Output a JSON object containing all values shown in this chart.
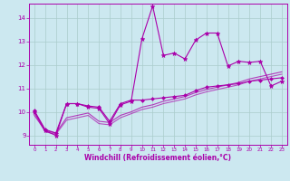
{
  "xlabel": "Windchill (Refroidissement éolien,°C)",
  "bg_color": "#cce8f0",
  "line_color": "#aa00aa",
  "grid_color": "#aacccc",
  "xlim": [
    -0.5,
    23.5
  ],
  "ylim": [
    8.6,
    14.6
  ],
  "yticks": [
    9,
    10,
    11,
    12,
    13,
    14
  ],
  "xticks": [
    0,
    1,
    2,
    3,
    4,
    5,
    6,
    7,
    8,
    9,
    10,
    11,
    12,
    13,
    14,
    15,
    16,
    17,
    18,
    19,
    20,
    21,
    22,
    23
  ],
  "series1_x": [
    0,
    1,
    2,
    3,
    4,
    5,
    6,
    7,
    8,
    9,
    10,
    11,
    12,
    13,
    14,
    15,
    16,
    17,
    18,
    19,
    20,
    21,
    22,
    23
  ],
  "series1_y": [
    10.0,
    9.2,
    9.0,
    10.35,
    10.35,
    10.2,
    10.15,
    9.5,
    10.3,
    10.45,
    13.1,
    14.5,
    12.4,
    12.5,
    12.25,
    13.05,
    13.35,
    13.35,
    11.95,
    12.15,
    12.1,
    12.15,
    11.1,
    11.3
  ],
  "series2_x": [
    0,
    1,
    2,
    3,
    4,
    5,
    6,
    7,
    8,
    9,
    10,
    11,
    12,
    13,
    14,
    15,
    16,
    17,
    18,
    19,
    20,
    21,
    22,
    23
  ],
  "series2_y": [
    10.05,
    9.25,
    9.1,
    10.35,
    10.35,
    10.25,
    10.2,
    9.6,
    10.35,
    10.5,
    10.5,
    10.55,
    10.6,
    10.65,
    10.7,
    10.9,
    11.05,
    11.1,
    11.15,
    11.2,
    11.3,
    11.35,
    11.4,
    11.45
  ],
  "series3_x": [
    0,
    1,
    2,
    3,
    4,
    5,
    6,
    7,
    8,
    9,
    10,
    11,
    12,
    13,
    14,
    15,
    16,
    17,
    18,
    19,
    20,
    21,
    22,
    23
  ],
  "series3_y": [
    9.85,
    9.2,
    9.1,
    9.75,
    9.85,
    9.95,
    9.6,
    9.55,
    9.85,
    10.0,
    10.2,
    10.3,
    10.45,
    10.55,
    10.65,
    10.82,
    10.95,
    11.05,
    11.15,
    11.25,
    11.4,
    11.5,
    11.6,
    11.7
  ],
  "series4_x": [
    0,
    1,
    2,
    3,
    4,
    5,
    6,
    7,
    8,
    9,
    10,
    11,
    12,
    13,
    14,
    15,
    16,
    17,
    18,
    19,
    20,
    21,
    22,
    23
  ],
  "series4_y": [
    9.95,
    9.15,
    9.05,
    9.65,
    9.75,
    9.85,
    9.5,
    9.45,
    9.75,
    9.92,
    10.1,
    10.2,
    10.35,
    10.45,
    10.55,
    10.72,
    10.85,
    10.95,
    11.05,
    11.15,
    11.3,
    11.4,
    11.5,
    11.6
  ]
}
